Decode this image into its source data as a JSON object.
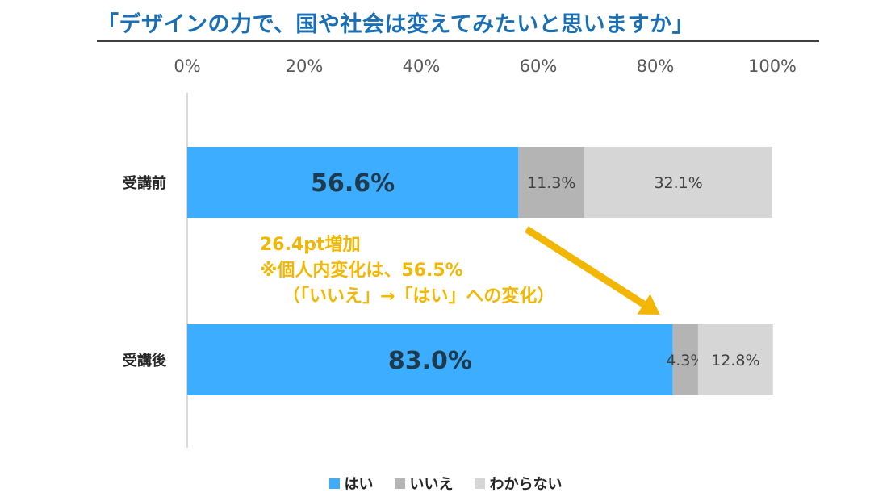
{
  "title": "「デザインの力で、国や社会は変えてみたいと思いますか」",
  "annotation": {
    "line1": "26.4pt増加",
    "line2": "※個人内変化は、56.5%",
    "line3": "（「いいえ」→「はい」への変化）"
  },
  "colors": {
    "yes": "#3daeff",
    "no": "#b4b4b4",
    "unknown": "#d6d6d6",
    "annotation": "#f2b705"
  },
  "chart_data": {
    "type": "bar",
    "orientation": "horizontal",
    "stacked": true,
    "categories": [
      "受講前",
      "受講後"
    ],
    "series": [
      {
        "name": "はい",
        "values": [
          56.6,
          83.0
        ],
        "labels": [
          "56.6%",
          "83.0%"
        ]
      },
      {
        "name": "いいえ",
        "values": [
          11.3,
          4.3
        ],
        "labels": [
          "11.3%",
          "4.3%"
        ]
      },
      {
        "name": "わからない",
        "values": [
          32.1,
          12.8
        ],
        "labels": [
          "32.1%",
          "12.8%"
        ]
      }
    ],
    "xlim": [
      0,
      100
    ],
    "x_ticks": [
      "0%",
      "20%",
      "40%",
      "60%",
      "80%",
      "100%"
    ],
    "x_axis_position": "top",
    "legend_position": "bottom",
    "grid": false
  }
}
